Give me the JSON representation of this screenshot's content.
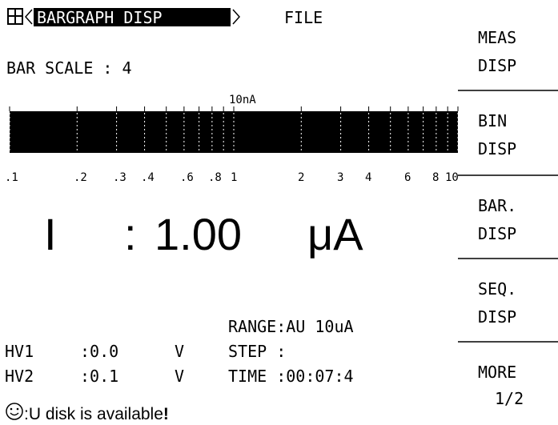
{
  "header": {
    "title": "BARGRAPH DISP",
    "menu": "FILE"
  },
  "bar_scale": "BAR SCALE : 4",
  "scale": {
    "unit": "10nA",
    "labels": [
      ".1",
      ".2",
      ".3",
      ".4",
      ".6",
      ".8",
      "1",
      "2",
      "3",
      "4",
      "6",
      "8",
      "10"
    ]
  },
  "reading": {
    "name": "I",
    "separator": ":",
    "value": "1.00",
    "unit": "μA"
  },
  "status": {
    "range": "RANGE:AU 10uA",
    "hv1": {
      "label": "HV1",
      "value": ":0.0",
      "unit": "V"
    },
    "step": "STEP :",
    "hv2": {
      "label": "HV2",
      "value": ":0.1",
      "unit": "V"
    },
    "time": "TIME :00:07:4",
    "message": ":U disk is available",
    "mark": "!"
  },
  "softkeys": [
    {
      "line1": "MEAS",
      "line2": "DISP"
    },
    {
      "line1": "BIN",
      "line2": "DISP"
    },
    {
      "line1": "BAR.",
      "line2": "DISP"
    },
    {
      "line1": "SEQ.",
      "line2": "DISP"
    },
    {
      "line1": "MORE",
      "line2": "1/2"
    }
  ]
}
